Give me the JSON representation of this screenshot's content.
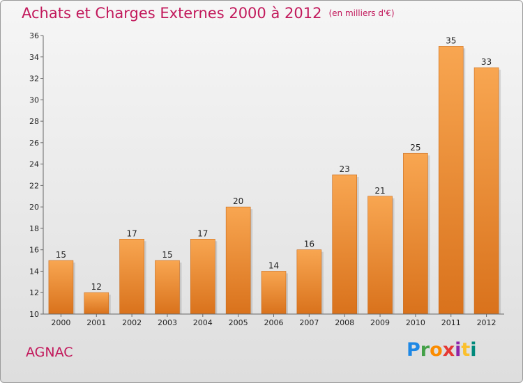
{
  "header": {
    "title": "Achats et Charges Externes 2000 à 2012",
    "unit": "(en milliers d'€)"
  },
  "footer": {
    "commune": "AGNAC",
    "logo": "Proxiti"
  },
  "colors": {
    "title": "#c2185b",
    "bar_top": "#f8a651",
    "bar_bottom": "#d9721c"
  },
  "chart_data": {
    "type": "bar",
    "title": "Achats et Charges Externes 2000 à 2012",
    "subtitle": "(en milliers d'€)",
    "xlabel": "",
    "ylabel": "",
    "categories": [
      "2000",
      "2001",
      "2002",
      "2003",
      "2004",
      "2005",
      "2006",
      "2007",
      "2008",
      "2009",
      "2010",
      "2011",
      "2012"
    ],
    "values": [
      15,
      12,
      17,
      15,
      17,
      20,
      14,
      16,
      23,
      21,
      25,
      35,
      33
    ],
    "ylim": [
      10,
      36
    ],
    "yticks": [
      10,
      12,
      14,
      16,
      18,
      20,
      22,
      24,
      26,
      28,
      30,
      32,
      34,
      36
    ],
    "grid": false,
    "legend": "none"
  }
}
